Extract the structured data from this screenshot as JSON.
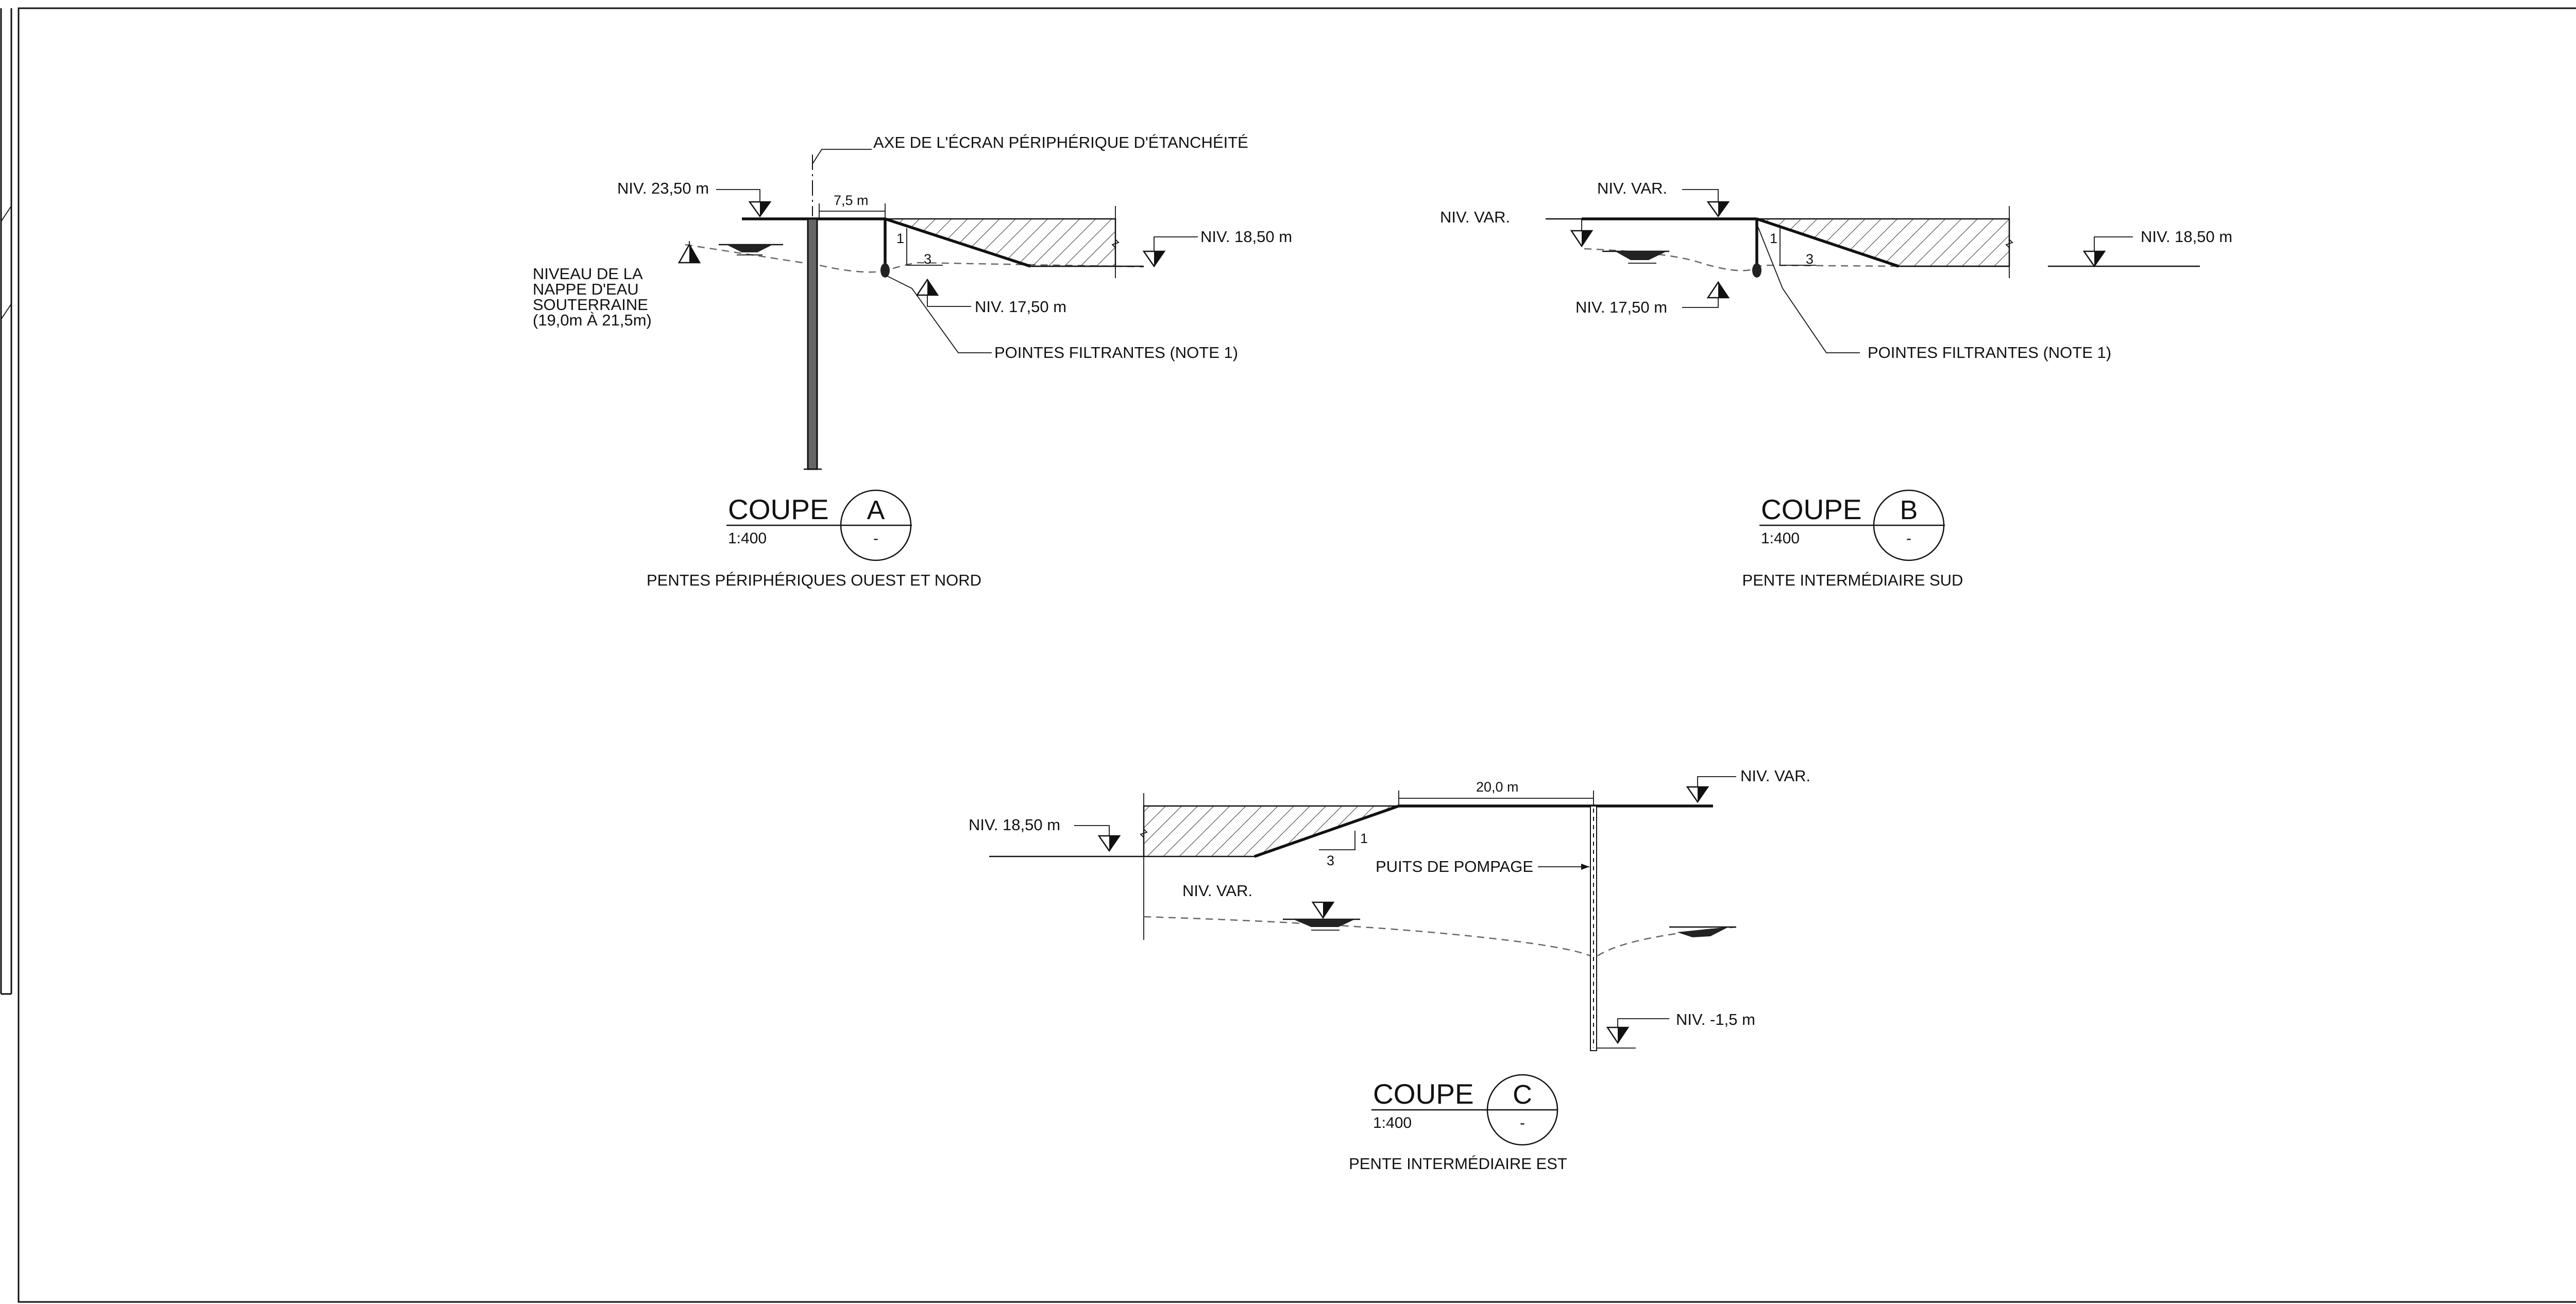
{
  "section_a": {
    "axis_note": "AXE DE L'ÉCRAN PÉRIPHÉRIQUE D'ÉTANCHÉITÉ",
    "level_top": "NIV. 23,50 m",
    "dimension": "7,5 m",
    "level_right": "NIV. 18,50 m",
    "level_bottom": "NIV. 17,50 m",
    "slope_v": "1",
    "slope_h": "3",
    "water_note": [
      "NIVEAU DE LA",
      "NAPPE D'EAU",
      "SOUTERRAINE",
      "(19,0m À 21,5m)"
    ],
    "wellpoints_note": "POINTES FILTRANTES (NOTE 1)",
    "title": "COUPE",
    "letter": "A",
    "scale": "1:400",
    "ref": "-",
    "subtitle": "PENTES PÉRIPHÉRIQUES OUEST ET NORD"
  },
  "section_b": {
    "level_top": "NIV. VAR.",
    "level_left": "NIV. VAR.",
    "level_right": "NIV. 18,50 m",
    "level_bottom": "NIV. 17,50 m",
    "slope_v": "1",
    "slope_h": "3",
    "wellpoints_note": "POINTES FILTRANTES (NOTE 1)",
    "title": "COUPE",
    "letter": "B",
    "scale": "1:400",
    "ref": "-",
    "subtitle": "PENTE INTERMÉDIAIRE SUD"
  },
  "section_c": {
    "level_left": "NIV. 18,50 m",
    "dimension": "20,0 m",
    "level_right": "NIV. VAR.",
    "water_level": "NIV. VAR.",
    "slope_v": "1",
    "slope_h": "3",
    "well_note": "PUITS DE POMPAGE",
    "level_bottom": "NIV. -1,5 m",
    "title": "COUPE",
    "letter": "C",
    "scale": "1:400",
    "ref": "-",
    "subtitle": "PENTE INTERMÉDIAIRE EST"
  }
}
